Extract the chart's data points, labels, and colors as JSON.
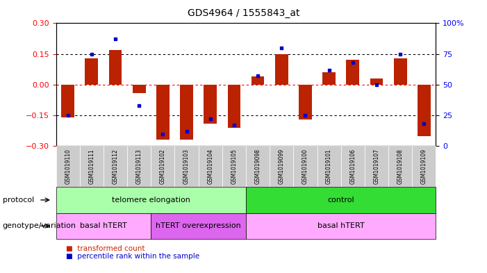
{
  "title": "GDS4964 / 1555843_at",
  "samples": [
    "GSM1019110",
    "GSM1019111",
    "GSM1019112",
    "GSM1019113",
    "GSM1019102",
    "GSM1019103",
    "GSM1019104",
    "GSM1019105",
    "GSM1019098",
    "GSM1019099",
    "GSM1019100",
    "GSM1019101",
    "GSM1019106",
    "GSM1019107",
    "GSM1019108",
    "GSM1019109"
  ],
  "bar_values": [
    -0.16,
    0.13,
    0.17,
    -0.04,
    -0.27,
    -0.27,
    -0.19,
    -0.21,
    0.04,
    0.15,
    -0.17,
    0.06,
    0.12,
    0.03,
    0.13,
    -0.25
  ],
  "dot_values": [
    25,
    75,
    87,
    33,
    10,
    12,
    22,
    17,
    57,
    80,
    25,
    62,
    68,
    50,
    75,
    18
  ],
  "ylim": [
    -0.3,
    0.3
  ],
  "yticks_left": [
    -0.3,
    -0.15,
    0.0,
    0.15,
    0.3
  ],
  "yticks_right": [
    0,
    25,
    50,
    75,
    100
  ],
  "hlines": [
    -0.15,
    0.0,
    0.15
  ],
  "bar_color": "#bb2200",
  "dot_color": "#0000cc",
  "protocol_groups": [
    {
      "label": "telomere elongation",
      "start": 0,
      "end": 8,
      "color": "#aaffaa"
    },
    {
      "label": "control",
      "start": 8,
      "end": 16,
      "color": "#33dd33"
    }
  ],
  "genotype_groups": [
    {
      "label": "basal hTERT",
      "start": 0,
      "end": 4,
      "color": "#ffaaff"
    },
    {
      "label": "hTERT overexpression",
      "start": 4,
      "end": 8,
      "color": "#dd66ee"
    },
    {
      "label": "basal hTERT",
      "start": 8,
      "end": 16,
      "color": "#ffaaff"
    }
  ],
  "protocol_label": "protocol",
  "genotype_label": "genotype/variation",
  "legend_items": [
    {
      "label": "transformed count",
      "color": "#cc2200"
    },
    {
      "label": "percentile rank within the sample",
      "color": "#0000cc"
    }
  ],
  "tick_bg_color": "#cccccc",
  "label_arrow_color": "#555555"
}
